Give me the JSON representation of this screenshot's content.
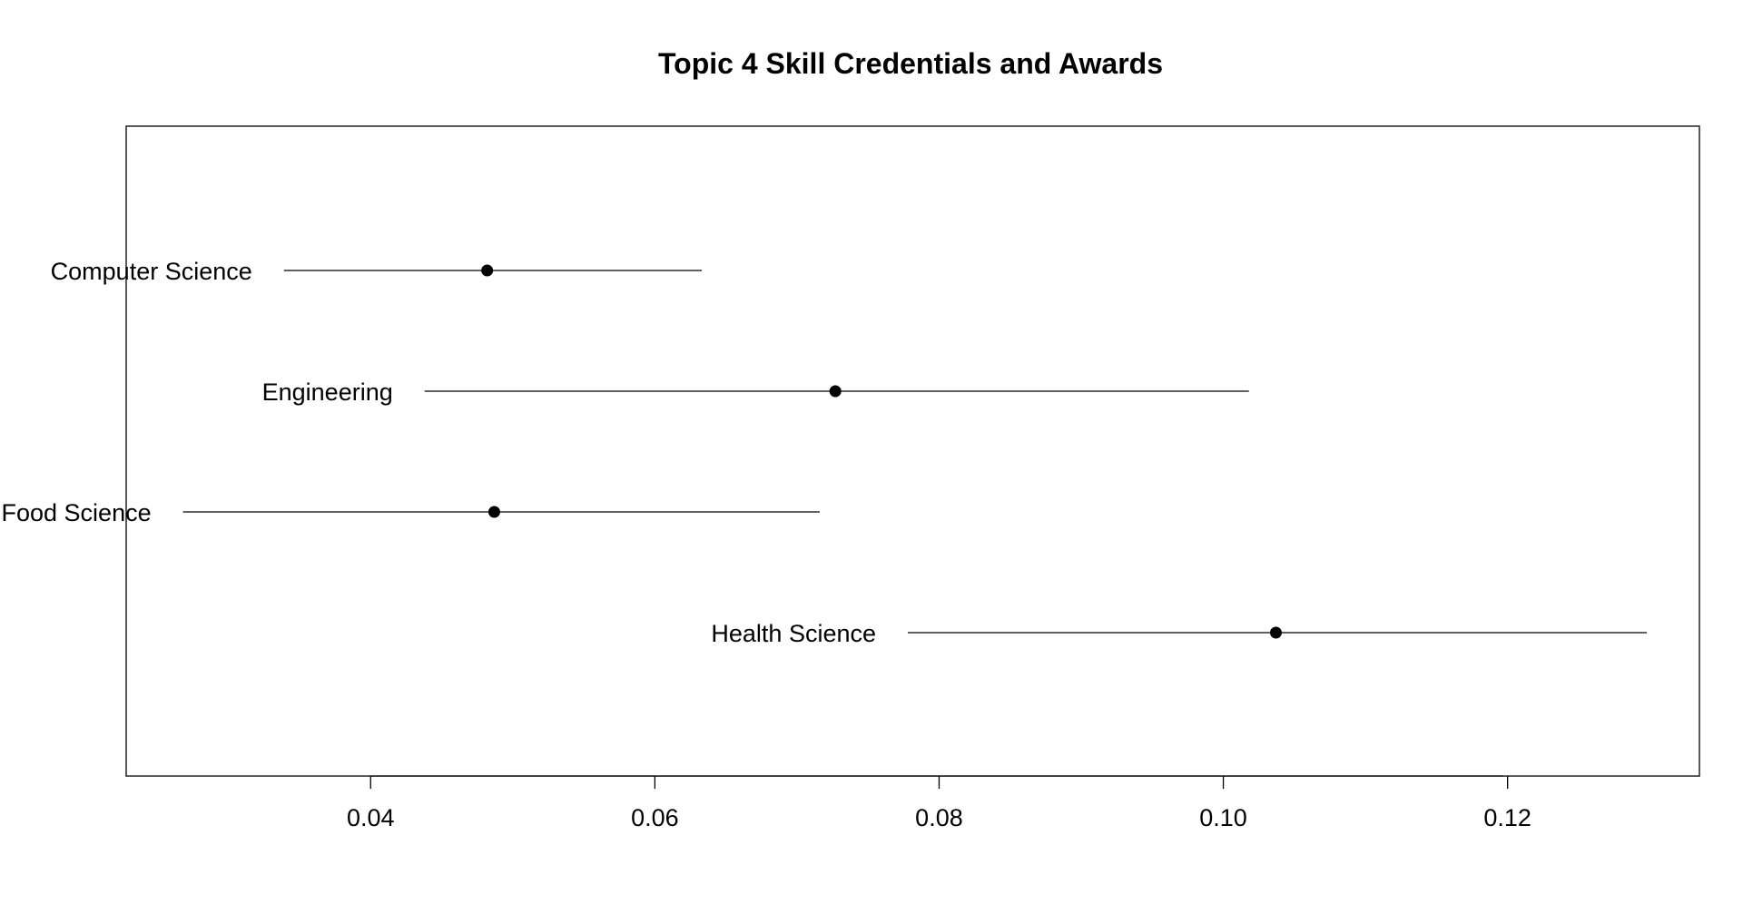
{
  "chart_data": {
    "type": "scatter",
    "title": "Topic 4 Skill Credentials and Awards",
    "xlabel": "",
    "ylabel": "",
    "xlim": [
      0.0228,
      0.1335
    ],
    "xticks": [
      0.04,
      0.06,
      0.08,
      0.1,
      0.12
    ],
    "xtick_labels": [
      "0.04",
      "0.06",
      "0.08",
      "0.10",
      "0.12"
    ],
    "grid": false,
    "legend": "none",
    "colors": {
      "points": "#000000",
      "lines": "#000000",
      "frame": "#000000"
    },
    "points": [
      {
        "label": "Computer Science",
        "estimate": 0.0482,
        "lower": 0.0339,
        "upper": 0.0633
      },
      {
        "label": "Engineering",
        "estimate": 0.0727,
        "lower": 0.0438,
        "upper": 0.1018
      },
      {
        "label": "Food Science",
        "estimate": 0.0487,
        "lower": 0.0268,
        "upper": 0.0716
      },
      {
        "label": "Health Science",
        "estimate": 0.1037,
        "lower": 0.0778,
        "upper": 0.1298
      }
    ]
  }
}
